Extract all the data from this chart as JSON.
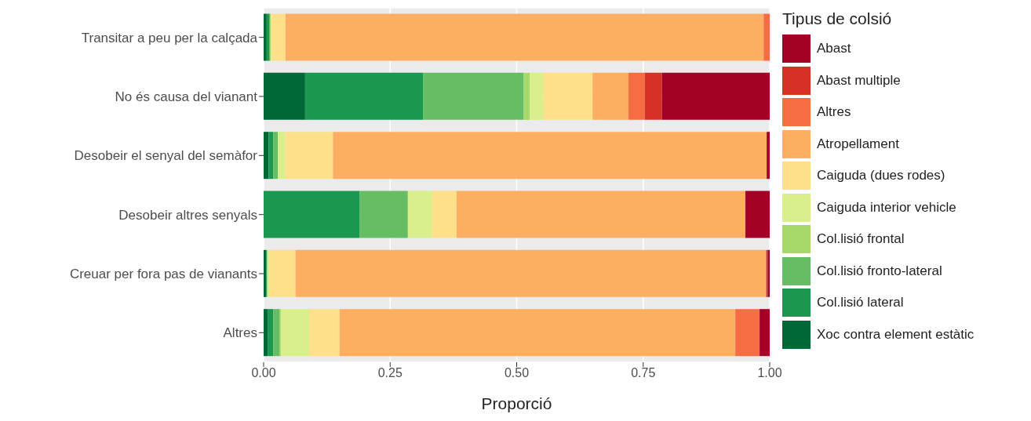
{
  "chart_data": {
    "type": "bar",
    "orientation": "horizontal",
    "stacked": true,
    "xlabel": "Proporció",
    "legend_title": "Tipus de colsió",
    "categories": [
      "Transitar a peu per la calçada",
      "No és causa del  vianant",
      "Desobeir el senyal del semàfor",
      "Desobeir altres senyals",
      "Creuar per fora pas de vianants",
      "Altres"
    ],
    "xlim": [
      0,
      1
    ],
    "xticks": [
      {
        "value": 0,
        "label": "0.00"
      },
      {
        "value": 0.25,
        "label": "0.25"
      },
      {
        "value": 0.5,
        "label": "0.50"
      },
      {
        "value": 0.75,
        "label": "0.75"
      },
      {
        "value": 1,
        "label": "1.00"
      }
    ],
    "grid": true,
    "legend": "right",
    "series": [
      {
        "name": "Xoc contra element estàtic",
        "color": "#006837",
        "values": [
          0.006,
          0.082,
          0.01,
          0,
          0.005,
          0.008
        ]
      },
      {
        "name": "Col.lisió lateral",
        "color": "#1a9850",
        "values": [
          0.006,
          0.233,
          0.009,
          0.19,
          0.002,
          0.011
        ]
      },
      {
        "name": "Col.lisió fronto-lateral",
        "color": "#66bd63",
        "values": [
          0,
          0.199,
          0.009,
          0.095,
          0,
          0.013
        ]
      },
      {
        "name": "Col.lisió frontal",
        "color": "#a6d96a",
        "values": [
          0.002,
          0.012,
          0,
          0,
          0,
          0.002
        ]
      },
      {
        "name": "Caiguda interior vehicle",
        "color": "#d9ef8b",
        "values": [
          0.002,
          0.027,
          0.015,
          0.048,
          0.005,
          0.056
        ]
      },
      {
        "name": "Caiguda (dues rodes)",
        "color": "#fee08b",
        "values": [
          0.027,
          0.097,
          0.094,
          0.048,
          0.051,
          0.06
        ]
      },
      {
        "name": "Atropellament",
        "color": "#fdae61",
        "values": [
          0.945,
          0.071,
          0.857,
          0.571,
          0.93,
          0.782
        ]
      },
      {
        "name": "Altres",
        "color": "#f46d43",
        "values": [
          0.012,
          0.032,
          0,
          0,
          0,
          0.048
        ]
      },
      {
        "name": "Abast multiple",
        "color": "#d73027",
        "values": [
          0,
          0.034,
          0,
          0,
          0.003,
          0
        ]
      },
      {
        "name": "Abast",
        "color": "#a50026",
        "values": [
          0,
          0.213,
          0.006,
          0.048,
          0.004,
          0.02
        ]
      }
    ]
  }
}
